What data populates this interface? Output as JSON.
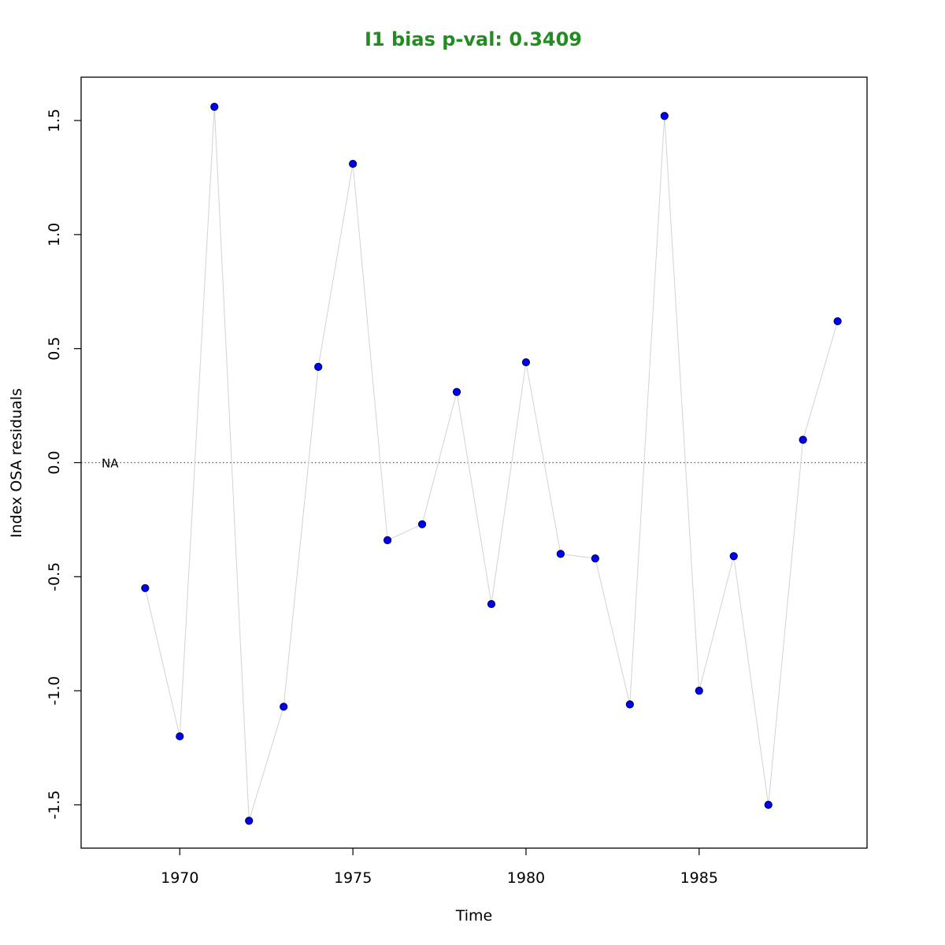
{
  "chart_data": {
    "type": "scatter",
    "title": "I1 bias p-val: 0.3409",
    "xlabel": "Time",
    "ylabel": "Index OSA residuals",
    "xlim": [
      1967.15,
      1989.85
    ],
    "ylim": [
      -1.69,
      1.69
    ],
    "x_ticks": [
      1970,
      1975,
      1980,
      1985
    ],
    "x_tick_labels": [
      "1970",
      "1975",
      "1980",
      "1985"
    ],
    "y_ticks": [
      -1.5,
      -1.0,
      -0.5,
      0.0,
      0.5,
      1.0,
      1.5
    ],
    "y_tick_labels": [
      "-1.5",
      "-1.0",
      "-0.5",
      "0.0",
      "0.5",
      "1.0",
      "1.5"
    ],
    "reference_line": 0,
    "annotation": "NA",
    "grid": false,
    "series": [
      {
        "x": [
          1969,
          1970,
          1971,
          1972,
          1973,
          1974,
          1975,
          1976,
          1977,
          1978,
          1979,
          1980,
          1981,
          1982,
          1983,
          1984,
          1985,
          1986,
          1987,
          1988,
          1989
        ],
        "y": [
          -0.55,
          -1.2,
          1.56,
          -1.57,
          -1.07,
          0.42,
          1.31,
          -0.34,
          -0.27,
          0.31,
          -0.62,
          0.44,
          -0.4,
          -0.42,
          -1.06,
          1.52,
          -1.0,
          -0.41,
          -1.5,
          0.1,
          0.62
        ]
      }
    ],
    "colors": {
      "title": "#228B22",
      "point_fill": "#0000FF",
      "point_stroke": "#000033",
      "connector": "#D3D3D3",
      "reference": "#555555"
    }
  }
}
